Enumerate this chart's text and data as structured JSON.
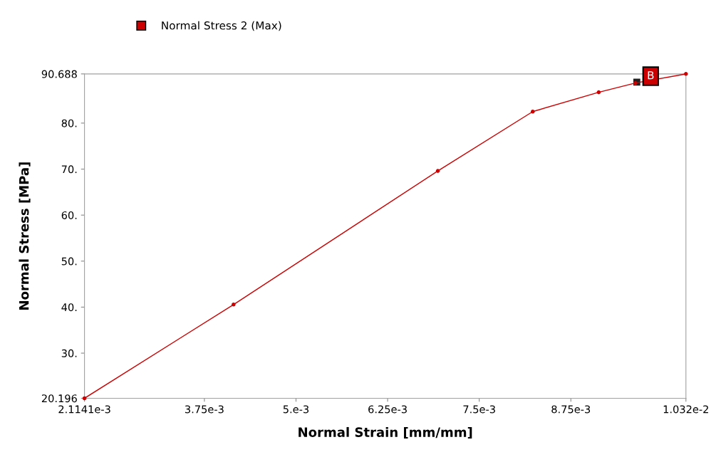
{
  "chart_data": {
    "type": "line",
    "xlabel": "Normal Strain [mm/mm]",
    "ylabel": "Normal Stress [MPa]",
    "series": [
      {
        "name": "Normal Stress 2 (Max)",
        "color": "#cc0000",
        "x": [
          0.0021141,
          0.004148,
          0.006935,
          0.00823,
          0.00913,
          0.00963,
          0.01032
        ],
        "values": [
          20.196,
          40.56,
          69.6,
          82.5,
          86.7,
          88.7,
          90.688
        ]
      }
    ],
    "xlim": [
      0.0021141,
      0.01032
    ],
    "xticks": [
      {
        "value": 0.0021141,
        "label": "2.1141e-3"
      },
      {
        "value": 0.00375,
        "label": "3.75e-3"
      },
      {
        "value": 0.005,
        "label": "5.e-3"
      },
      {
        "value": 0.00625,
        "label": "6.25e-3"
      },
      {
        "value": 0.0075,
        "label": "7.5e-3"
      },
      {
        "value": 0.00875,
        "label": "8.75e-3"
      },
      {
        "value": 0.01032,
        "label": "1.032e-2"
      }
    ],
    "ylim": [
      20.196,
      90.688
    ],
    "yticks": [
      {
        "value": 20.196,
        "label": "20.196"
      },
      {
        "value": 30,
        "label": "30."
      },
      {
        "value": 40,
        "label": "40."
      },
      {
        "value": 50,
        "label": "50."
      },
      {
        "value": 60,
        "label": "60."
      },
      {
        "value": 70,
        "label": "70."
      },
      {
        "value": 80,
        "label": "80."
      },
      {
        "value": 90.688,
        "label": "90.688"
      }
    ],
    "annotations": [
      {
        "text": "B",
        "x": 0.00965,
        "y": 88.9
      }
    ],
    "marker": "circle",
    "legend": "top left",
    "grid": false
  }
}
